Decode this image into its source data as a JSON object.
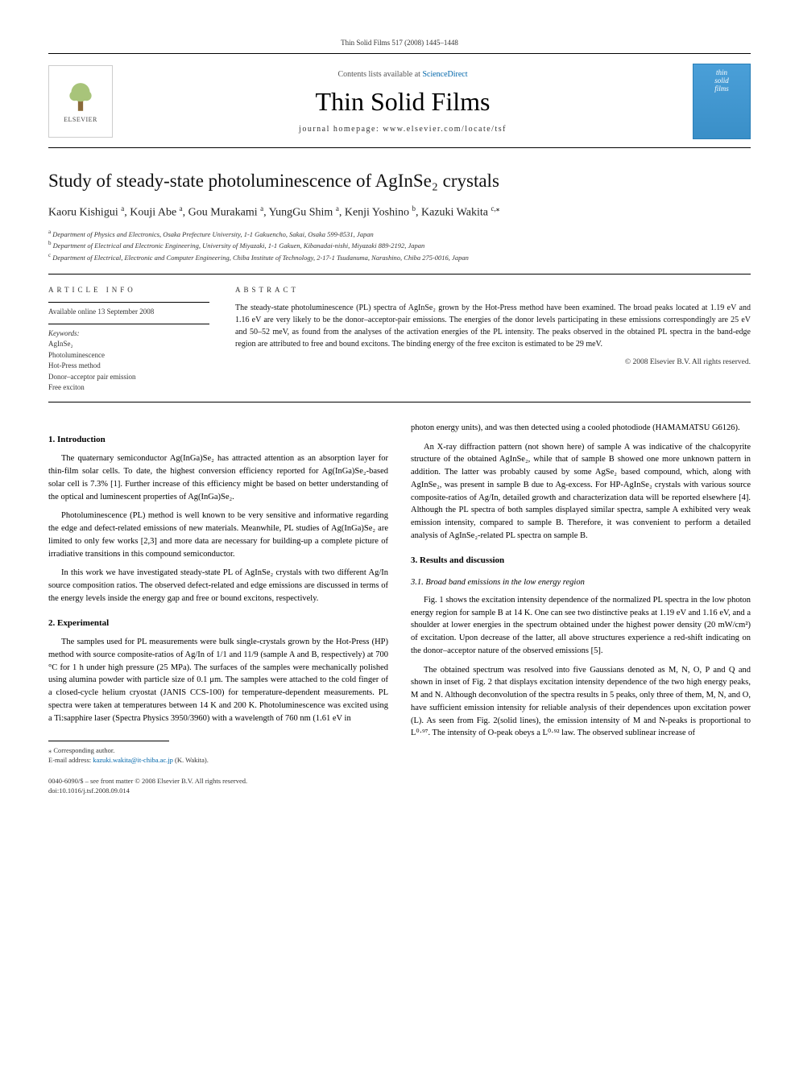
{
  "header": {
    "running_head": "Thin Solid Films 517 (2008) 1445–1448",
    "contents_line_prefix": "Contents lists available at ",
    "contents_link": "ScienceDirect",
    "journal_name": "Thin Solid Films",
    "homepage_label": "journal homepage: www.elsevier.com/locate/tsf",
    "publisher_logo_text": "ELSEVIER",
    "cover_text_line1": "thin",
    "cover_text_line2": "solid",
    "cover_text_line3": "films"
  },
  "article": {
    "title": "Study of steady-state photoluminescence of AgInSe₂ crystals",
    "authors_html": "Kaoru Kishigui ",
    "authors": [
      {
        "name": "Kaoru Kishigui",
        "aff": "a"
      },
      {
        "name": "Kouji Abe",
        "aff": "a"
      },
      {
        "name": "Gou Murakami",
        "aff": "a"
      },
      {
        "name": "YungGu Shim",
        "aff": "a"
      },
      {
        "name": "Kenji Yoshino",
        "aff": "b"
      },
      {
        "name": "Kazuki Wakita",
        "aff": "c",
        "corr": true
      }
    ],
    "affiliations": [
      {
        "marker": "a",
        "text": "Department of Physics and Electronics, Osaka Prefecture University, 1-1 Gakuencho, Sakai, Osaka 599-8531, Japan"
      },
      {
        "marker": "b",
        "text": "Department of Electrical and Electronic Engineering, University of Miyazaki, 1-1 Gakuen, Kibanadai-nishi, Miyazaki 889-2192, Japan"
      },
      {
        "marker": "c",
        "text": "Department of Electrical, Electronic and Computer Engineering, Chiba Institute of Technology, 2-17-1 Tsudanuma, Narashino, Chiba 275-0016, Japan"
      }
    ]
  },
  "info": {
    "section_label": "ARTICLE INFO",
    "available": "Available online 13 September 2008",
    "keywords_label": "Keywords:",
    "keywords": [
      "AgInSe₂",
      "Photoluminescence",
      "Hot-Press method",
      "Donor–acceptor pair emission",
      "Free exciton"
    ]
  },
  "abstract": {
    "section_label": "ABSTRACT",
    "text": "The steady-state photoluminescence (PL) spectra of AgInSe₂ grown by the Hot-Press method have been examined. The broad peaks located at 1.19 eV and 1.16 eV are very likely to be the donor–acceptor-pair emissions. The energies of the donor levels participating in these emissions correspondingly are 25 eV and 50–52 meV, as found from the analyses of the activation energies of the PL intensity. The peaks observed in the obtained PL spectra in the band-edge region are attributed to free and bound excitons. The binding energy of the free exciton is estimated to be 29 meV.",
    "copyright": "© 2008 Elsevier B.V. All rights reserved."
  },
  "body": {
    "left": {
      "h1": "1. Introduction",
      "p1": "The quaternary semiconductor Ag(InGa)Se₂ has attracted attention as an absorption layer for thin-film solar cells. To date, the highest conversion efficiency reported for Ag(InGa)Se₂-based solar cell is 7.3% [1]. Further increase of this efficiency might be based on better understanding of the optical and luminescent properties of Ag(InGa)Se₂.",
      "p2": "Photoluminescence (PL) method is well known to be very sensitive and informative regarding the edge and defect-related emissions of new materials. Meanwhile, PL studies of Ag(InGa)Se₂ are limited to only few works [2,3] and more data are necessary for building-up a complete picture of irradiative transitions in this compound semiconductor.",
      "p3": "In this work we have investigated steady-state PL of AgInSe₂ crystals with two different Ag/In source composition ratios. The observed defect-related and edge emissions are discussed in terms of the energy levels inside the energy gap and free or bound excitons, respectively.",
      "h2": "2. Experimental",
      "p4": "The samples used for PL measurements were bulk single-crystals grown by the Hot-Press (HP) method with source composite-ratios of Ag/In of 1/1 and 11/9 (sample A and B, respectively) at 700 °C for 1 h under high pressure (25 MPa). The surfaces of the samples were mechanically polished using alumina powder with particle size of 0.1 μm. The samples were attached to the cold finger of a closed-cycle helium cryostat (JANIS CCS-100) for temperature-dependent measurements. PL spectra were taken at temperatures between 14 K and 200 K. Photoluminescence was excited using a Ti:sapphire laser (Spectra Physics 3950/3960) with a wavelength of 760 nm (1.61 eV in"
    },
    "right": {
      "p1": "photon energy units), and was then detected using a cooled photodiode (HAMAMATSU G6126).",
      "p2": "An X-ray diffraction pattern (not shown here) of sample A was indicative of the chalcopyrite structure of the obtained AgInSe₂, while that of sample B showed one more unknown pattern in addition. The latter was probably caused by some AgSe₂ based compound, which, along with AgInSe₂, was present in sample B due to Ag-excess. For HP-AgInSe₂ crystals with various source composite-ratios of Ag/In, detailed growth and characterization data will be reported elsewhere [4]. Although the PL spectra of both samples displayed similar spectra, sample A exhibited very weak emission intensity, compared to sample B. Therefore, it was convenient to perform a detailed analysis of AgInSe₂-related PL spectra on sample B.",
      "h1": "3. Results and discussion",
      "h2": "3.1. Broad band emissions in the low energy region",
      "p3": "Fig. 1 shows the excitation intensity dependence of the normalized PL spectra in the low photon energy region for sample B at 14 K. One can see two distinctive peaks at 1.19 eV and 1.16 eV, and a shoulder at lower energies in the spectrum obtained under the highest power density (20 mW/cm²) of excitation. Upon decrease of the latter, all above structures experience a red-shift indicating on the donor–acceptor nature of the observed emissions [5].",
      "p4": "The obtained spectrum was resolved into five Gaussians denoted as M, N, O, P and Q and shown in inset of Fig. 2 that displays excitation intensity dependence of the two high energy peaks, M and N. Although deconvolution of the spectra results in 5 peaks, only three of them, M, N, and O, have sufficient emission intensity for reliable analysis of their dependences upon excitation power (L). As seen from Fig. 2(solid lines), the emission intensity of M and N-peaks is proportional to L⁰·⁹⁷. The intensity of O-peak obeys a L⁰·⁹² law. The observed sublinear increase of"
    }
  },
  "footnote": {
    "corr_label": "⁎ Corresponding author.",
    "email_label": "E-mail address: ",
    "email": "kazuki.wakita@it-chiba.ac.jp",
    "email_suffix": " (K. Wakita)."
  },
  "doi": {
    "line1": "0040-6090/$ – see front matter © 2008 Elsevier B.V. All rights reserved.",
    "line2": "doi:10.1016/j.tsf.2008.09.014"
  },
  "colors": {
    "link": "#0066aa",
    "cover_bg_top": "#4a9fd8",
    "cover_bg_bottom": "#3a8fc8",
    "logo_orange": "#e67a2e"
  }
}
